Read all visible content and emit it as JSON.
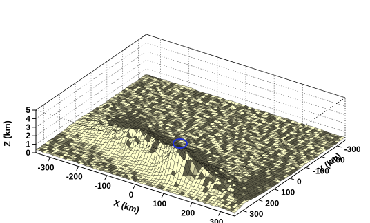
{
  "chart_data": {
    "type": "surface",
    "title": "",
    "xlabel": "X (km)",
    "ylabel": "Y (km)",
    "zlabel": "Z (km)",
    "x_ticks": [
      "-300",
      "-200",
      "-100",
      "0",
      "100",
      "200",
      "300"
    ],
    "y_ticks": [
      "300",
      "200",
      "100",
      "0",
      "-100",
      "-200",
      "-300"
    ],
    "z_ticks": [
      "0",
      "1",
      "2",
      "3",
      "4",
      "5"
    ],
    "xlim": [
      -350,
      350
    ],
    "ylim": [
      -350,
      350
    ],
    "zlim": [
      0,
      5
    ],
    "grid": "dotted back planes",
    "surface_color": "#f2f0bc",
    "mesh_color": "#1a1a14",
    "marker": {
      "shape": "ellipse",
      "color": "#1f2fd6",
      "x": 30,
      "y": 120,
      "z": 2.2
    },
    "terrain": "mountain range ridge along X, peak ~4.8 km near x=90, y=240; flat plain ~0.4 km elsewhere"
  }
}
